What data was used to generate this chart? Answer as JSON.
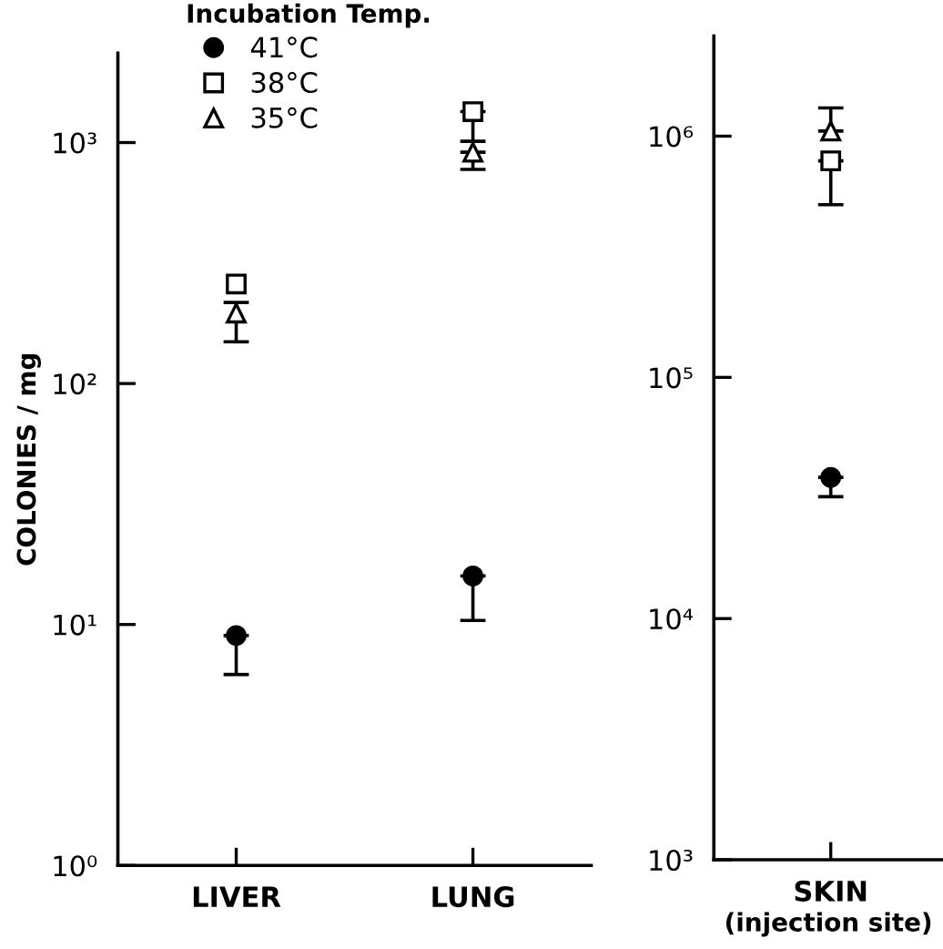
{
  "chart_data": [
    {
      "type": "scatter",
      "ylabel": "COLONIES / mg",
      "categories": [
        "LIVER",
        "LUNG"
      ],
      "log": "y",
      "ylim": [
        1,
        2350
      ],
      "yticks": [
        {
          "value": 1,
          "label": "10⁰"
        },
        {
          "value": 10,
          "label": "10¹"
        },
        {
          "value": 100,
          "label": "10²"
        },
        {
          "value": 1000,
          "label": "10³"
        }
      ],
      "legend": "top left",
      "legend_title": "Incubation Temp.",
      "grid": false,
      "series": [
        {
          "name": "41°C",
          "color": "#000000",
          "marker": "circle",
          "values": [
            9.0,
            15.9
          ],
          "errors": [
            [
              6.2,
              9.0
            ],
            [
              10.4,
              15.9
            ]
          ]
        },
        {
          "name": "38°C",
          "color": "#000000",
          "marker": "square",
          "values": [
            259,
            1344
          ],
          "errors": [
            null,
            [
              1012,
              1344
            ]
          ]
        },
        {
          "name": "35°C",
          "color": "#000000",
          "marker": "triangle",
          "values": [
            196,
            912
          ],
          "errors": [
            [
              149,
              217
            ],
            [
              774,
              912
            ]
          ]
        }
      ]
    },
    {
      "type": "scatter",
      "categories": [
        "SKIN"
      ],
      "xlabel": "(injection site)",
      "log": "y",
      "ylim": [
        1000,
        2600000
      ],
      "yticks": [
        {
          "value": 1000,
          "label": "10³"
        },
        {
          "value": 10000,
          "label": "10⁴"
        },
        {
          "value": 100000,
          "label": "10⁵"
        },
        {
          "value": 1000000,
          "label": "10⁶"
        }
      ],
      "legend": false,
      "grid": false,
      "series": [
        {
          "color": "#000000",
          "marker": "circle",
          "values": [
            38500
          ],
          "errors": [
            [
              32000,
              38500
            ]
          ]
        },
        {
          "color": "#000000",
          "marker": "square",
          "values": [
            790000
          ],
          "errors": [
            [
              520000,
              790000
            ]
          ]
        },
        {
          "color": "#000000",
          "marker": "triangle",
          "values": [
            1050000
          ],
          "errors": [
            [
              1050000,
              1310000
            ]
          ]
        }
      ]
    }
  ]
}
